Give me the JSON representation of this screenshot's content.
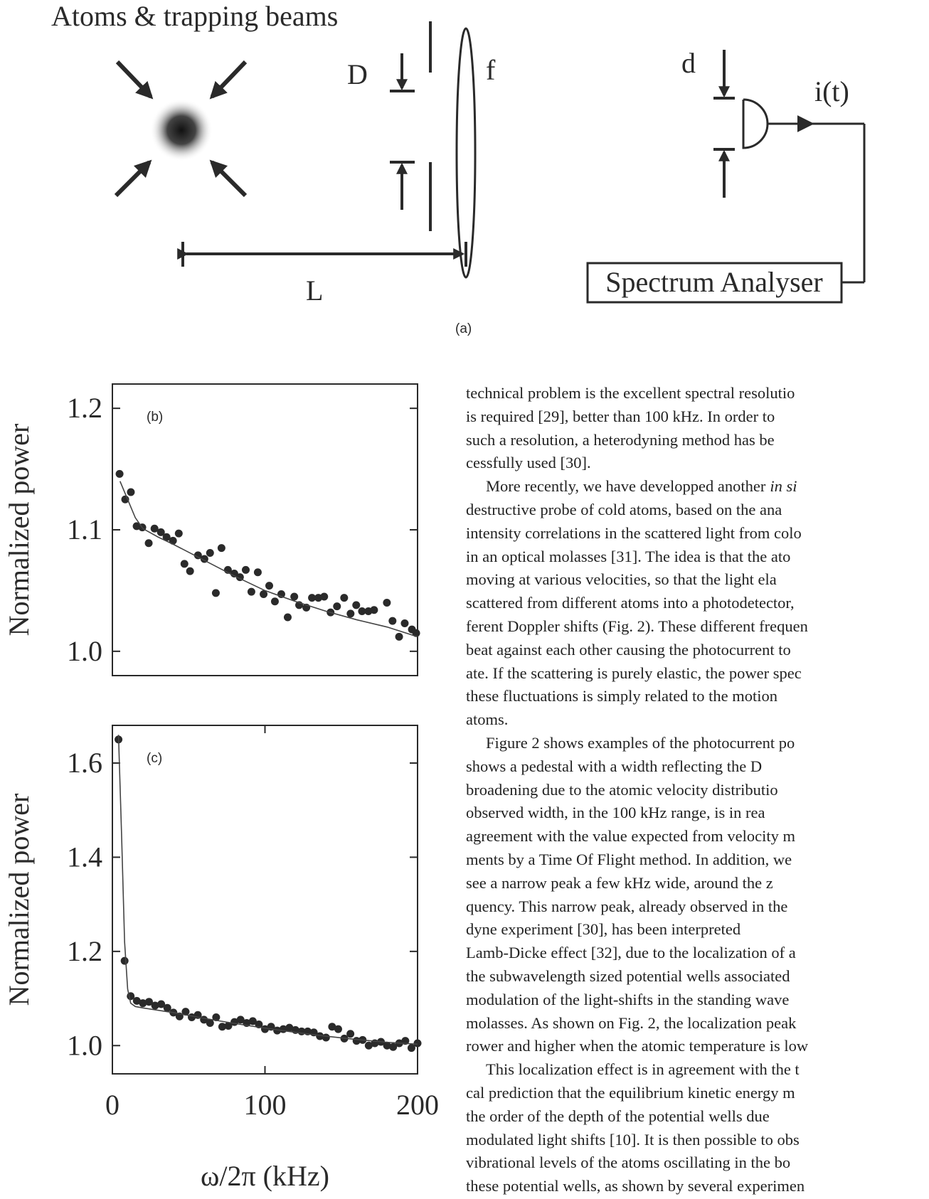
{
  "figure_a": {
    "title": "Atoms & trapping beams",
    "label_D": "D",
    "label_f": "f",
    "label_d": "d",
    "label_current": "i(t)",
    "label_L": "L",
    "analyser": "Spectrum Analyser",
    "caption": "(a)"
  },
  "chart_data": [
    {
      "type": "scatter",
      "panel_label": "(b)",
      "ylabel": "Normalized power",
      "xlim": [
        0,
        200
      ],
      "ylim": [
        0.98,
        1.22
      ],
      "yticks": [
        {
          "value": 1.0,
          "label": "1.0"
        },
        1.1,
        1.2
      ],
      "series": [
        {
          "mode": "markers",
          "color": "#2a2a2a",
          "x": [
            4.7,
            8.4,
            12.1,
            15.9,
            19.6,
            23.8,
            27.6,
            31.8,
            35.5,
            39.7,
            43.5,
            47.2,
            50.9,
            56.1,
            60.3,
            64,
            67.8,
            71.5,
            75.7,
            79.9,
            83.6,
            87.4,
            91.1,
            95.3,
            99.1,
            102.8,
            106.5,
            110.7,
            114.9,
            119.2,
            122.4,
            127.1,
            130.8,
            135,
            138.8,
            143,
            147.2,
            151.9,
            156.1,
            159.8,
            163.6,
            167.8,
            171.5,
            179.9,
            183.6,
            187.9,
            191.6,
            196.3,
            199.1
          ],
          "values": [
            1.146,
            1.125,
            1.131,
            1.103,
            1.102,
            1.089,
            1.101,
            1.098,
            1.094,
            1.091,
            1.097,
            1.072,
            1.066,
            1.079,
            1.076,
            1.081,
            1.048,
            1.085,
            1.067,
            1.064,
            1.061,
            1.067,
            1.049,
            1.065,
            1.047,
            1.054,
            1.041,
            1.047,
            1.028,
            1.045,
            1.038,
            1.036,
            1.044,
            1.044,
            1.045,
            1.032,
            1.037,
            1.044,
            1.031,
            1.038,
            1.033,
            1.033,
            1.034,
            1.04,
            1.025,
            1.012,
            1.023,
            1.018,
            1.015
          ]
        },
        {
          "mode": "line",
          "color": "#444444",
          "x": [
            5,
            10,
            15,
            20,
            30,
            40,
            60,
            80,
            100,
            120,
            140,
            160,
            180,
            200
          ],
          "values": [
            1.14,
            1.125,
            1.11,
            1.101,
            1.094,
            1.088,
            1.075,
            1.062,
            1.05,
            1.041,
            1.033,
            1.026,
            1.02,
            1.012
          ]
        }
      ]
    },
    {
      "type": "scatter",
      "panel_label": "(c)",
      "ylabel": "Normalized power",
      "xlabel": "ω/2π (kHz)",
      "xlim": [
        0,
        200
      ],
      "ylim": [
        0.94,
        1.68
      ],
      "xticks": [
        0,
        100,
        200
      ],
      "yticks": [
        {
          "value": 1.0,
          "label": "1.0"
        },
        1.2,
        1.4,
        1.6
      ],
      "series": [
        {
          "mode": "markers",
          "color": "#2a2a2a",
          "x": [
            4,
            8,
            12,
            16,
            20,
            24,
            28,
            32,
            36,
            40,
            44,
            48,
            52,
            56,
            60,
            64,
            68,
            72,
            76,
            80,
            84,
            88,
            92,
            96,
            100,
            104,
            108,
            112,
            116,
            120,
            124,
            128,
            132,
            136,
            140,
            144,
            148,
            152,
            156,
            160,
            164,
            168,
            172,
            176,
            180,
            184,
            188,
            192,
            196,
            200
          ],
          "values": [
            1.65,
            1.18,
            1.105,
            1.095,
            1.09,
            1.093,
            1.085,
            1.088,
            1.08,
            1.07,
            1.062,
            1.072,
            1.06,
            1.065,
            1.055,
            1.048,
            1.06,
            1.04,
            1.042,
            1.05,
            1.055,
            1.048,
            1.052,
            1.045,
            1.035,
            1.04,
            1.032,
            1.035,
            1.038,
            1.033,
            1.03,
            1.03,
            1.028,
            1.02,
            1.017,
            1.04,
            1.035,
            1.015,
            1.025,
            1.01,
            1.012,
            1.0,
            1.005,
            1.008,
            1.0,
            0.997,
            1.005,
            1.01,
            0.995,
            1.005
          ]
        },
        {
          "mode": "line",
          "color": "#444444",
          "x": [
            4,
            6,
            8,
            10,
            12,
            15,
            20,
            40,
            60,
            80,
            100,
            120,
            140,
            160,
            180,
            200
          ],
          "values": [
            1.66,
            1.45,
            1.22,
            1.12,
            1.09,
            1.083,
            1.08,
            1.07,
            1.058,
            1.047,
            1.037,
            1.028,
            1.02,
            1.013,
            1.007,
            1.003
          ]
        }
      ]
    }
  ],
  "text": {
    "paragraphs": [
      {
        "indent": false,
        "lines": [
          "technical problem is the excellent spectral resolutio",
          "is required [29], better than 100 kHz. In order to",
          "such a resolution, a heterodyning method has be",
          "cessfully used [30]."
        ]
      },
      {
        "indent": true,
        "lines": [
          {
            "text": "More recently, we have developped another",
            "emphasis": "in si"
          },
          "destructive probe of cold atoms, based on the ana",
          "intensity correlations in the scattered light from colo",
          "in an optical molasses [31]. The idea is that the ato",
          "moving at various velocities, so that the light ela",
          "scattered from different atoms into a photodetector,",
          "ferent Doppler shifts (Fig. 2). These different frequen",
          "beat against each other causing the photocurrent to",
          "ate. If the scattering is purely elastic, the power spec",
          "these fluctuations is simply related to the motion",
          "atoms."
        ]
      },
      {
        "indent": true,
        "lines": [
          "Figure 2 shows examples of the photocurrent po",
          "shows a pedestal with a width reflecting the D",
          "broadening due to the atomic velocity distributio",
          "observed width, in the 100 kHz range, is in rea",
          "agreement with the value expected from velocity m",
          "ments by a Time Of Flight method. In addition, we",
          "see a narrow peak a few kHz wide, around the z",
          "quency. This narrow peak, already observed in the",
          "dyne experiment [30], has been interpreted",
          "Lamb-Dicke effect [32], due to the localization of a",
          "the subwavelength sized potential wells associated",
          "modulation of the light-shifts in the standing wave",
          "molasses. As shown on Fig. 2, the localization peak",
          "rower and higher when the atomic temperature is low"
        ]
      },
      {
        "indent": true,
        "lines": [
          "This localization effect is in agreement with the t",
          "cal prediction that the equilibrium kinetic energy m",
          "the order of the depth of the potential wells due",
          "modulated light shifts [10]. It is then possible to obs",
          "vibrational levels of the atoms oscillating in the bo",
          "these potential wells, as shown by several experimen"
        ]
      }
    ]
  }
}
